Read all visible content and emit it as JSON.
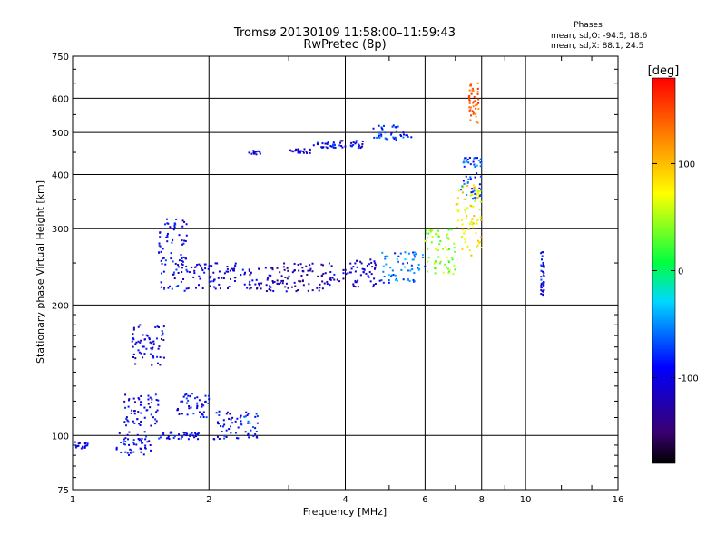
{
  "chart_data": {
    "type": "scatter",
    "title": "Tromsø 20130109 11:58:00–11:59:43",
    "subtitle": "RwPretec (8p)",
    "xlabel": "Frequency [MHz]",
    "ylabel": "Stationary phase Virtual Height [km]",
    "x_scale": "log",
    "y_scale": "log",
    "xlim": [
      1,
      16
    ],
    "ylim": [
      75,
      750
    ],
    "x_ticks": [
      1,
      2,
      4,
      6,
      8,
      10,
      16
    ],
    "x_ticklabels": [
      "1",
      "2",
      "4",
      "6",
      "8",
      "10",
      "16"
    ],
    "y_ticks": [
      75,
      100,
      200,
      300,
      400,
      500,
      600,
      750
    ],
    "y_ticklabels": [
      "75",
      "100",
      "200",
      "300",
      "400",
      "500",
      "600",
      "750"
    ],
    "grid": true,
    "phase_header": "Phases",
    "stats": [
      "mean, sd,O: -94.5, 18.6",
      "mean, sd,X:  88.1, 24.5"
    ],
    "colorbar": {
      "label": "[deg]",
      "range": [
        -180,
        180
      ],
      "ticks": [
        100,
        0,
        -100
      ],
      "ticklabels": [
        "100",
        "0",
        "-100"
      ]
    },
    "series": [
      {
        "color_by": "phase_deg",
        "note_clusters": [
          {
            "x": [
              1.0,
              1.08
            ],
            "y": [
              93,
              97
            ],
            "phase": -100
          },
          {
            "x": [
              1.25,
              1.5
            ],
            "y": [
              90,
              102
            ],
            "phase": -95
          },
          {
            "x": [
              1.55,
              1.9
            ],
            "y": [
              98,
              102
            ],
            "phase": -95
          },
          {
            "x": [
              1.3,
              1.55
            ],
            "y": [
              105,
              125
            ],
            "phase": -100
          },
          {
            "x": [
              1.7,
              2.0
            ],
            "y": [
              110,
              125
            ],
            "phase": -95
          },
          {
            "x": [
              2.05,
              2.6
            ],
            "y": [
              98,
              115
            ],
            "phase": -90
          },
          {
            "x": [
              1.35,
              1.6
            ],
            "y": [
              145,
              180
            ],
            "phase": -105
          },
          {
            "x": [
              1.55,
              1.8
            ],
            "y": [
              215,
              320
            ],
            "phase": -95
          },
          {
            "x": [
              1.8,
              2.4
            ],
            "y": [
              218,
              250
            ],
            "phase": -110
          },
          {
            "x": [
              2.4,
              2.9
            ],
            "y": [
              215,
              245
            ],
            "phase": -115
          },
          {
            "x": [
              2.9,
              3.6
            ],
            "y": [
              215,
              250
            ],
            "phase": -125
          },
          {
            "x": [
              3.6,
              4.8
            ],
            "y": [
              220,
              255
            ],
            "phase": -110
          },
          {
            "x": [
              4.8,
              6.0
            ],
            "y": [
              225,
              265
            ],
            "phase": -60
          },
          {
            "x": [
              6.0,
              7.0
            ],
            "y": [
              235,
              300
            ],
            "phase": 40
          },
          {
            "x": [
              7.0,
              8.0
            ],
            "y": [
              260,
              380
            ],
            "phase": 80
          },
          {
            "x": [
              7.2,
              8.0
            ],
            "y": [
              350,
              440
            ],
            "phase": -70
          },
          {
            "x": [
              2.45,
              2.6
            ],
            "y": [
              445,
              455
            ],
            "phase": -100
          },
          {
            "x": [
              3.0,
              3.4
            ],
            "y": [
              448,
              458
            ],
            "phase": -110
          },
          {
            "x": [
              3.4,
              3.9
            ],
            "y": [
              460,
              475
            ],
            "phase": -95
          },
          {
            "x": [
              3.9,
              4.4
            ],
            "y": [
              460,
              480
            ],
            "phase": -100
          },
          {
            "x": [
              4.6,
              5.6
            ],
            "y": [
              480,
              520
            ],
            "phase": -80
          },
          {
            "x": [
              7.5,
              7.9
            ],
            "y": [
              520,
              650
            ],
            "phase": 140
          },
          {
            "x": [
              10.8,
              11.0
            ],
            "y": [
              210,
              265
            ],
            "phase": -100
          }
        ]
      }
    ]
  }
}
